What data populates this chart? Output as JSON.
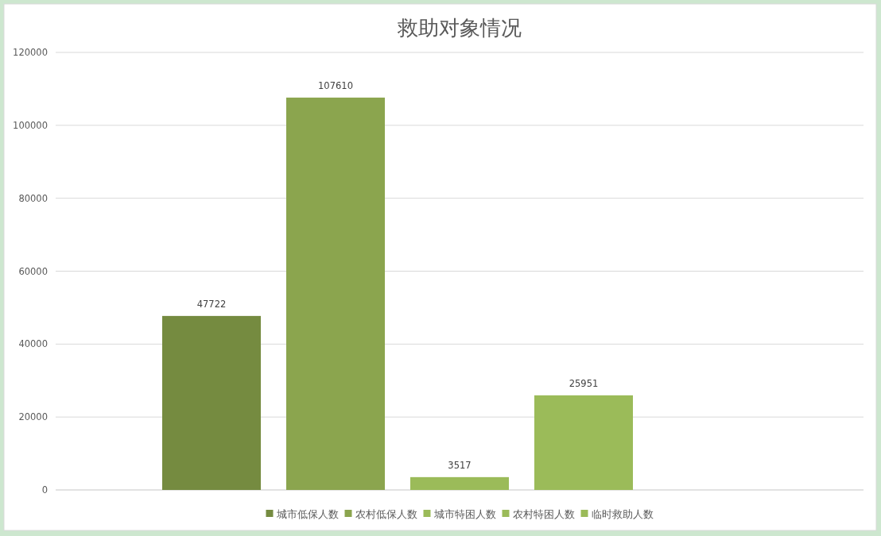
{
  "chart_data": {
    "type": "bar",
    "title": "救助对象情况",
    "categories": [
      null
    ],
    "series": [
      {
        "name": "城市低保人数",
        "color": "#758b40",
        "values": [
          47722
        ]
      },
      {
        "name": "农村低保人数",
        "color": "#8ba54e",
        "values": [
          107610
        ]
      },
      {
        "name": "城市特困人数",
        "color": "#9bbb59",
        "values": [
          3517
        ]
      },
      {
        "name": "农村特困人数",
        "color": "#9bbb59",
        "values": [
          25951
        ]
      },
      {
        "name": "临时救助人数",
        "color": "#9bbb59",
        "values": [
          null
        ]
      }
    ],
    "ylim": [
      0,
      120000
    ],
    "yticks": [
      0,
      20000,
      40000,
      60000,
      80000,
      100000,
      120000
    ],
    "grid": "y",
    "legend": "bottom",
    "data_labels": true
  }
}
